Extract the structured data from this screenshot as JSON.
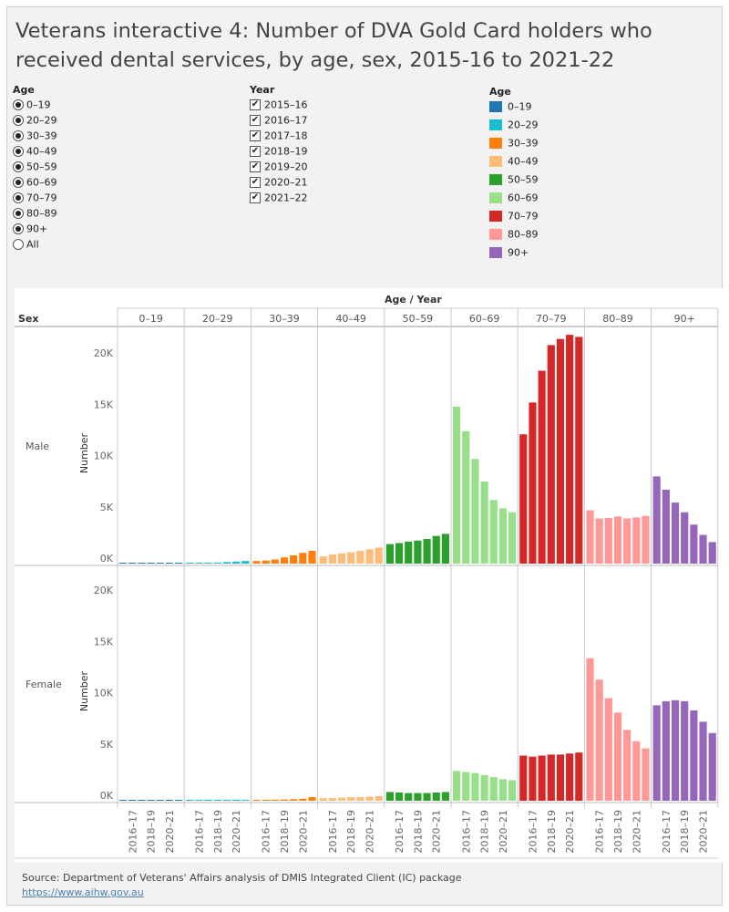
{
  "title": "Veterans interactive 4: Number of DVA Gold Card holders who received dental services, by age, sex, 2015-16 to 2021-22",
  "filters": {
    "age": {
      "title": "Age",
      "options": [
        "0–19",
        "20–29",
        "30–39",
        "40–49",
        "50–59",
        "60–69",
        "70–79",
        "80–89",
        "90+",
        "All"
      ],
      "selected": [
        "0–19",
        "20–29",
        "30–39",
        "40–49",
        "50–59",
        "60–69",
        "70–79",
        "80–89",
        "90+"
      ]
    },
    "year": {
      "title": "Year",
      "options": [
        "2015–16",
        "2016–17",
        "2017–18",
        "2018–19",
        "2019–20",
        "2020–21",
        "2021–22"
      ],
      "checked": [
        "2015–16",
        "2016–17",
        "2017–18",
        "2018–19",
        "2019–20",
        "2020–21",
        "2021–22"
      ],
      "check_glyph": "✔"
    }
  },
  "legend": {
    "title": "Age",
    "items": [
      {
        "label": "0–19",
        "color": "#1f77b4"
      },
      {
        "label": "20–29",
        "color": "#17becf"
      },
      {
        "label": "30–39",
        "color": "#ff7f0e"
      },
      {
        "label": "40–49",
        "color": "#ffbb78"
      },
      {
        "label": "50–59",
        "color": "#2ca02c"
      },
      {
        "label": "60–69",
        "color": "#98df8a"
      },
      {
        "label": "70–79",
        "color": "#d62728"
      },
      {
        "label": "80–89",
        "color": "#ff9896"
      },
      {
        "label": "90+",
        "color": "#9467bd"
      }
    ]
  },
  "chart_data": {
    "type": "bar",
    "column_header": "Age / Year",
    "row_header": "Sex",
    "ylabel": "Number",
    "ylim": [
      0,
      22600
    ],
    "y_ticks": [
      0,
      5000,
      10000,
      15000,
      20000
    ],
    "y_tick_labels": [
      "0K",
      "5K",
      "10K",
      "15K",
      "20K"
    ],
    "x_tick_labels": [
      "2016–17",
      "2018–19",
      "2020–21"
    ],
    "age_groups": [
      "0–19",
      "20–29",
      "30–39",
      "40–49",
      "50–59",
      "60–69",
      "70–79",
      "80–89",
      "90+"
    ],
    "years": [
      "2015–16",
      "2016–17",
      "2017–18",
      "2018–19",
      "2019–20",
      "2020–21",
      "2021–22"
    ],
    "colors": [
      "#1f77b4",
      "#17becf",
      "#ff7f0e",
      "#ffbb78",
      "#2ca02c",
      "#98df8a",
      "#d62728",
      "#ff9896",
      "#9467bd"
    ],
    "panels": [
      {
        "sex": "Male",
        "values": [
          [
            40,
            40,
            40,
            40,
            40,
            40,
            40
          ],
          [
            60,
            70,
            80,
            100,
            150,
            200,
            250
          ],
          [
            250,
            300,
            400,
            600,
            800,
            1050,
            1250
          ],
          [
            700,
            900,
            1000,
            1100,
            1250,
            1400,
            1550
          ],
          [
            1900,
            2000,
            2150,
            2250,
            2400,
            2700,
            2900
          ],
          [
            15300,
            12900,
            10200,
            8000,
            6200,
            5400,
            5000
          ],
          [
            12600,
            15700,
            18800,
            21300,
            21900,
            22300,
            22100
          ],
          [
            5200,
            4400,
            4450,
            4600,
            4400,
            4500,
            4650
          ],
          [
            8500,
            7200,
            5950,
            5000,
            3800,
            2800,
            2100
          ]
        ]
      },
      {
        "sex": "Female",
        "values": [
          [
            60,
            60,
            60,
            60,
            60,
            60,
            60
          ],
          [
            50,
            50,
            50,
            60,
            60,
            70,
            70
          ],
          [
            80,
            90,
            100,
            120,
            150,
            200,
            350
          ],
          [
            250,
            250,
            300,
            350,
            350,
            400,
            450
          ],
          [
            850,
            800,
            750,
            750,
            750,
            800,
            850
          ],
          [
            2900,
            2800,
            2700,
            2500,
            2300,
            2100,
            2000
          ],
          [
            4400,
            4300,
            4400,
            4500,
            4500,
            4600,
            4700
          ],
          [
            13900,
            11800,
            10000,
            8600,
            6900,
            5800,
            5100
          ],
          [
            9300,
            9700,
            9800,
            9700,
            8800,
            7700,
            6600
          ]
        ]
      }
    ]
  },
  "footer": {
    "source": "Source: Department of Veterans' Affairs analysis of DMIS Integrated Client (IC) package",
    "url": "https://www.aihw.gov.au"
  }
}
